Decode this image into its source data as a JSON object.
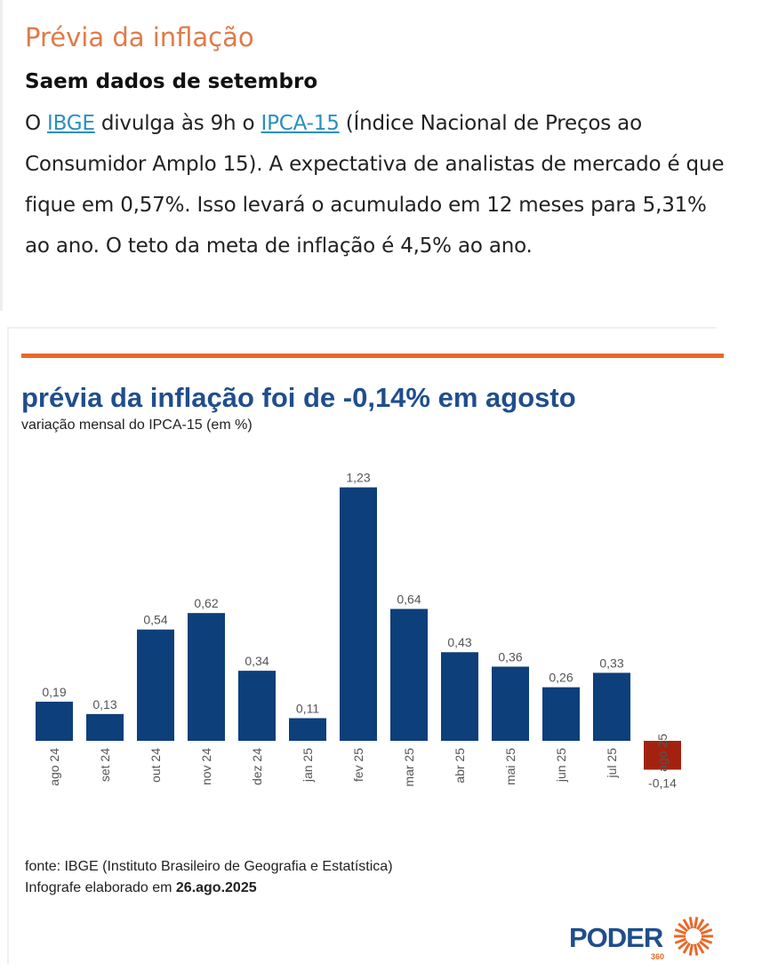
{
  "article": {
    "kicker": "Prévia da inflação",
    "headline": "Saem dados de setembro",
    "body": {
      "t1": "O ",
      "link1": "IBGE",
      "t2": " divulga às 9h o ",
      "link2": "IPCA-15",
      "t3": " (Índice Nacional de Preços ao Consumidor Amplo 15). A expectativa de analistas de mercado é que fique em 0,57%. Isso levará o acumulado em 12 meses para 5,31% ao ano. O teto da meta de inflação é 4,5% ao ano."
    }
  },
  "chart": {
    "title": "prévia da inflação foi de -0,14% em agosto",
    "subtitle": "variação mensal do IPCA-15 (em %)",
    "source_line": "fonte: IBGE (Instituto Brasileiro de Geografia e Estatística)",
    "date_prefix": "Infografe elaborado em ",
    "date": "26.ago.2025",
    "logo_text": "PODER",
    "logo_sub": "360"
  },
  "chart_data": {
    "type": "bar",
    "categories": [
      "ago 24",
      "set 24",
      "out 24",
      "nov 24",
      "dez 24",
      "jan 25",
      "fev 25",
      "mar 25",
      "abr 25",
      "mai 25",
      "jun 25",
      "jul 25",
      "ago 25"
    ],
    "values": [
      0.19,
      0.13,
      0.54,
      0.62,
      0.34,
      0.11,
      1.23,
      0.64,
      0.43,
      0.36,
      0.26,
      0.33,
      -0.14
    ],
    "labels": [
      "0,19",
      "0,13",
      "0,54",
      "0,62",
      "0,34",
      "0,11",
      "1,23",
      "0,64",
      "0,43",
      "0,36",
      "0,26",
      "0,33",
      "-0,14"
    ],
    "title": "prévia da inflação foi de -0,14% em agosto",
    "subtitle": "variação mensal do IPCA-15 (em %)",
    "xlabel": "",
    "ylabel": "",
    "colors": {
      "positive": "#0d3f7a",
      "negative": "#a3220f"
    },
    "grid": false
  }
}
